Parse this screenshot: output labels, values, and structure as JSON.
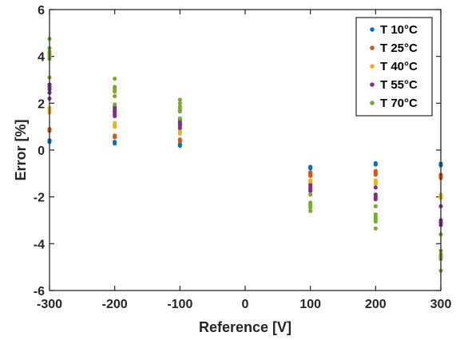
{
  "chart_data": {
    "type": "scatter",
    "title": "",
    "xlabel": "Reference [V]",
    "ylabel": "Error [%]",
    "xlim": [
      -300,
      300
    ],
    "ylim": [
      -6,
      6
    ],
    "xticks": [
      -300,
      -200,
      -100,
      0,
      100,
      200,
      300
    ],
    "yticks": [
      -6,
      -4,
      -2,
      0,
      2,
      4,
      6
    ],
    "grid": false,
    "legend_position": "top-right",
    "series": [
      {
        "name": "T 10°C",
        "color": "#0072BD",
        "points": [
          [
            -300,
            0.35
          ],
          [
            -300,
            0.42
          ],
          [
            -200,
            0.28
          ],
          [
            -200,
            0.35
          ],
          [
            -100,
            0.18
          ],
          [
            -100,
            0.25
          ],
          [
            100,
            -0.78
          ],
          [
            100,
            -0.72
          ],
          [
            200,
            -0.62
          ],
          [
            200,
            -0.56
          ],
          [
            300,
            -0.65
          ],
          [
            300,
            -0.58
          ]
        ]
      },
      {
        "name": "T 25°C",
        "color": "#D95319",
        "points": [
          [
            -300,
            0.82
          ],
          [
            -300,
            0.9
          ],
          [
            -200,
            0.55
          ],
          [
            -200,
            0.62
          ],
          [
            -100,
            0.38
          ],
          [
            -100,
            0.45
          ],
          [
            100,
            -1.02
          ],
          [
            100,
            -0.95
          ],
          [
            100,
            -1.1
          ],
          [
            200,
            -0.98
          ],
          [
            200,
            -0.9
          ],
          [
            200,
            -1.05
          ],
          [
            300,
            -1.12
          ],
          [
            300,
            -1.05
          ],
          [
            300,
            -1.2
          ]
        ]
      },
      {
        "name": "T 40°C",
        "color": "#EDB120",
        "points": [
          [
            -300,
            1.6
          ],
          [
            -300,
            1.7
          ],
          [
            -300,
            1.8
          ],
          [
            -200,
            1.0
          ],
          [
            -200,
            1.08
          ],
          [
            -200,
            1.15
          ],
          [
            -100,
            0.7
          ],
          [
            -100,
            0.78
          ],
          [
            -100,
            0.85
          ],
          [
            100,
            -1.3
          ],
          [
            100,
            -1.38
          ],
          [
            100,
            -1.45
          ],
          [
            200,
            -1.3
          ],
          [
            200,
            -1.38
          ],
          [
            200,
            -1.45
          ],
          [
            300,
            -1.9
          ],
          [
            300,
            -2.0
          ],
          [
            300,
            -2.05
          ]
        ]
      },
      {
        "name": "T 55°C",
        "color": "#7E2F8E",
        "points": [
          [
            -300,
            2.2
          ],
          [
            -300,
            2.45
          ],
          [
            -300,
            2.6
          ],
          [
            -300,
            2.7
          ],
          [
            -300,
            2.8
          ],
          [
            -200,
            1.45
          ],
          [
            -200,
            1.55
          ],
          [
            -200,
            1.65
          ],
          [
            -200,
            1.75
          ],
          [
            -200,
            1.85
          ],
          [
            -100,
            0.95
          ],
          [
            -100,
            1.05
          ],
          [
            -100,
            1.12
          ],
          [
            -100,
            1.2
          ],
          [
            -100,
            1.3
          ],
          [
            100,
            -1.5
          ],
          [
            100,
            -1.6
          ],
          [
            100,
            -1.68
          ],
          [
            100,
            -1.75
          ],
          [
            200,
            -1.6
          ],
          [
            200,
            -1.9
          ],
          [
            200,
            -2.0
          ],
          [
            200,
            -2.1
          ],
          [
            300,
            -2.4
          ],
          [
            300,
            -3.0
          ],
          [
            300,
            -3.1
          ],
          [
            300,
            -3.2
          ]
        ]
      },
      {
        "name": "T 70°C",
        "color": "#77AC30",
        "points": [
          [
            -300,
            3.1
          ],
          [
            -300,
            3.9
          ],
          [
            -300,
            4.0
          ],
          [
            -300,
            4.1
          ],
          [
            -300,
            4.2
          ],
          [
            -300,
            4.35
          ],
          [
            -300,
            4.75
          ],
          [
            -200,
            1.95
          ],
          [
            -200,
            2.3
          ],
          [
            -200,
            2.5
          ],
          [
            -200,
            2.6
          ],
          [
            -200,
            2.7
          ],
          [
            -200,
            3.05
          ],
          [
            -100,
            1.35
          ],
          [
            -100,
            1.65
          ],
          [
            -100,
            1.75
          ],
          [
            -100,
            1.85
          ],
          [
            -100,
            2.0
          ],
          [
            -100,
            2.15
          ],
          [
            100,
            -1.9
          ],
          [
            100,
            -2.25
          ],
          [
            100,
            -2.35
          ],
          [
            100,
            -2.45
          ],
          [
            100,
            -2.6
          ],
          [
            200,
            -2.4
          ],
          [
            200,
            -2.75
          ],
          [
            200,
            -2.85
          ],
          [
            200,
            -2.95
          ],
          [
            200,
            -3.05
          ],
          [
            200,
            -3.35
          ],
          [
            300,
            -3.6
          ],
          [
            300,
            -4.3
          ],
          [
            300,
            -4.45
          ],
          [
            300,
            -4.55
          ],
          [
            300,
            -4.65
          ],
          [
            300,
            -5.15
          ]
        ]
      }
    ]
  }
}
